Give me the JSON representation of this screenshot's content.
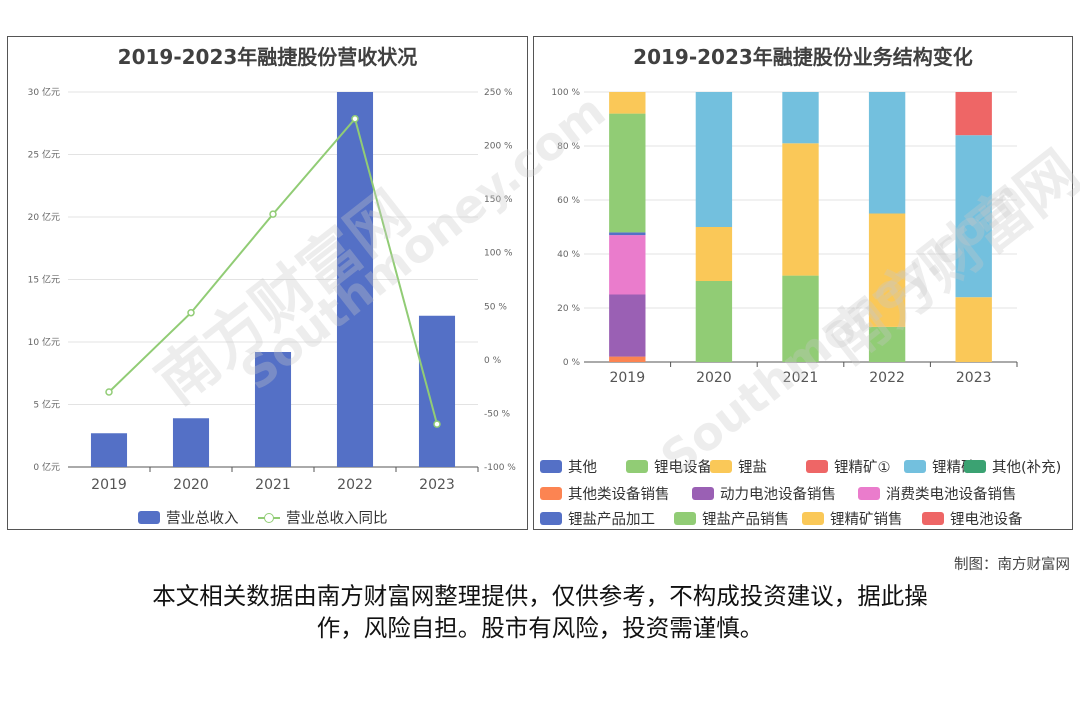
{
  "charts": {
    "left": {
      "title": "2019-2023年融捷股份营收状况"
    },
    "right": {
      "title": "2019-2023年融捷股份业务结构变化"
    }
  },
  "chart_data": [
    {
      "type": "bar",
      "title": "2019-2023年融捷股份营收状况",
      "categories": [
        "2019",
        "2020",
        "2021",
        "2022",
        "2023"
      ],
      "y_left": {
        "ticks": [
          "0 亿元",
          "5 亿元",
          "10 亿元",
          "15 亿元",
          "20 亿元",
          "25 亿元",
          "30 亿元"
        ],
        "range": [
          0,
          30
        ]
      },
      "y_right": {
        "ticks": [
          "-100 %",
          "-50 %",
          "0 %",
          "50 %",
          "100 %",
          "150 %",
          "200 %",
          "250 %"
        ],
        "range": [
          -100,
          250
        ]
      },
      "series": [
        {
          "name": "营业总收入",
          "type": "bar",
          "axis": "left",
          "color": "#5470c6",
          "values": [
            2.7,
            3.9,
            9.2,
            30.0,
            12.1
          ]
        },
        {
          "name": "营业总收入同比",
          "type": "line",
          "axis": "right",
          "color": "#91cc75",
          "values": [
            -30,
            44,
            136,
            225,
            -60
          ]
        }
      ],
      "legend_position": "bottom",
      "grid": true
    },
    {
      "type": "bar",
      "stacked": true,
      "title": "2019-2023年融捷股份业务结构变化",
      "categories": [
        "2019",
        "2020",
        "2021",
        "2022",
        "2023"
      ],
      "y": {
        "ticks": [
          "0 %",
          "20 %",
          "40 %",
          "60 %",
          "80 %",
          "100 %"
        ],
        "range": [
          0,
          100
        ]
      },
      "series": [
        {
          "name": "其他",
          "color": "#5470c6",
          "values": [
            0,
            0,
            0,
            0,
            0
          ]
        },
        {
          "name": "锂电设备",
          "color": "#91cc75",
          "values": [
            0,
            30,
            32,
            13,
            0
          ]
        },
        {
          "name": "锂盐",
          "color": "#fac858",
          "values": [
            0,
            20,
            49,
            42,
            24
          ]
        },
        {
          "name": "锂精矿①",
          "color": "#ee6666",
          "values": [
            0,
            0,
            0,
            0,
            0
          ]
        },
        {
          "name": "锂精矿",
          "color": "#73c0de",
          "values": [
            0,
            50,
            19,
            45,
            60
          ]
        },
        {
          "name": "其他(补充)",
          "color": "#3ba272",
          "values": [
            0,
            0,
            0,
            0,
            0
          ]
        },
        {
          "name": "其他类设备销售",
          "color": "#fc8452",
          "values": [
            2,
            0,
            0,
            0,
            0
          ]
        },
        {
          "name": "动力电池设备销售",
          "color": "#9a60b4",
          "values": [
            23,
            0,
            0,
            0,
            0
          ]
        },
        {
          "name": "消费类电池设备销售",
          "color": "#ea7ccc",
          "values": [
            22,
            0,
            0,
            0,
            0
          ]
        },
        {
          "name": "锂盐产品加工",
          "color": "#5470c6",
          "values": [
            1,
            0,
            0,
            0,
            0
          ]
        },
        {
          "name": "锂盐产品销售",
          "color": "#91cc75",
          "values": [
            44,
            0,
            0,
            0,
            0
          ]
        },
        {
          "name": "锂精矿销售",
          "color": "#fac858",
          "values": [
            8,
            0,
            0,
            0,
            0
          ]
        },
        {
          "name": "锂电池设备",
          "color": "#ee6666",
          "values": [
            0,
            0,
            0,
            0,
            16
          ]
        }
      ],
      "legend_position": "bottom",
      "grid": true
    }
  ],
  "credit": "制图：南方财富网",
  "disclaimer": {
    "line1": "本文相关数据由南方财富网整理提供，仅供参考，不构成投资建议，据此操",
    "line2": "作，风险自担。股市有风险，投资需谨慎。"
  }
}
